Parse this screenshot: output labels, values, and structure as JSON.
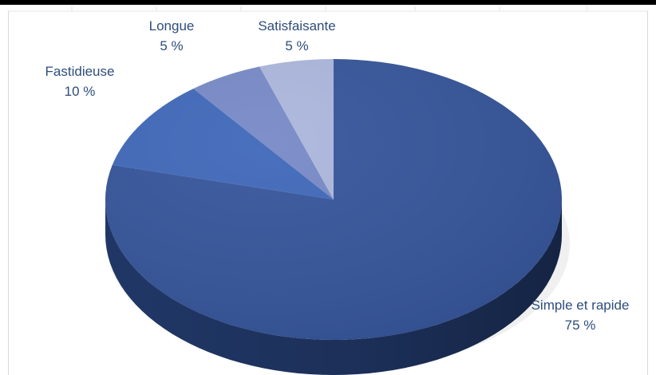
{
  "chart_data": {
    "type": "pie",
    "style": "3d",
    "title": "",
    "categories": [
      "Simple et rapide",
      "Fastidieuse",
      "Longue",
      "Satisfaisante"
    ],
    "values": [
      75,
      10,
      5,
      5
    ],
    "value_labels": [
      "75 %",
      "10 %",
      "5 %",
      "5 %"
    ],
    "colors": [
      "#34549a",
      "#3e67b9",
      "#7688c6",
      "#abb6dc"
    ],
    "side_colors": [
      "#223a6c",
      "#2a4984",
      "#53629a",
      "#7d89b1"
    ],
    "label_color": "#2e4d7b",
    "legend": "none",
    "data_labels": "outside"
  }
}
